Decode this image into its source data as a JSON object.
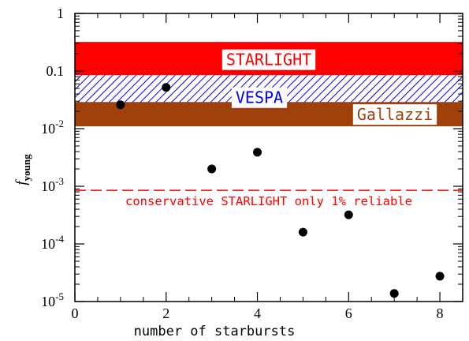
{
  "chart_data": {
    "type": "scatter",
    "title": "",
    "xlabel": "number of starbursts",
    "ylabel": "f",
    "ylabel_subscript": "young",
    "xlim": [
      0,
      8.5
    ],
    "ylim": [
      1e-05,
      1
    ],
    "yscale": "log",
    "xticks": [
      0,
      2,
      4,
      6,
      8
    ],
    "xtick_labels": [
      "0",
      "2",
      "4",
      "6",
      "8"
    ],
    "yticks": [
      {
        "value": 1,
        "base": "1",
        "exp": ""
      },
      {
        "value": 0.1,
        "base": "0.1",
        "exp": ""
      },
      {
        "value": 0.01,
        "base": "10",
        "exp": "-2"
      },
      {
        "value": 0.001,
        "base": "10",
        "exp": "-3"
      },
      {
        "value": 0.0001,
        "base": "10",
        "exp": "-4"
      },
      {
        "value": 1e-05,
        "base": "10",
        "exp": "-5"
      }
    ],
    "grid": false,
    "series": [
      {
        "x": [
          1,
          2,
          3,
          4,
          5,
          6,
          7,
          8
        ],
        "y": [
          0.026,
          0.052,
          0.002,
          0.0039,
          0.00016,
          0.00032,
          1.38e-05,
          2.75e-05
        ]
      }
    ],
    "bands": [
      {
        "label": "STARLIGHT",
        "ymin": 0.085,
        "ymax": 0.32,
        "fill": "#ff0000",
        "text_color": "#ff0000",
        "hatched": false
      },
      {
        "label": "VESPA",
        "ymin": 0.011,
        "ymax": 0.085,
        "fill": "#0000ff",
        "text_color": "#0000ff",
        "hatched": true
      },
      {
        "label": "Gallazzi",
        "ymin": 0.011,
        "ymax": 0.029,
        "fill": "#a0400a",
        "text_color": "#a0400a",
        "hatched": false
      }
    ],
    "reference_line": {
      "y": 0.00085,
      "label": "conservative STARLIGHT only 1% reliable",
      "color": "#ff0000",
      "style": "dashed"
    },
    "colors": {
      "points": "#000000",
      "axes": "#000000"
    }
  }
}
